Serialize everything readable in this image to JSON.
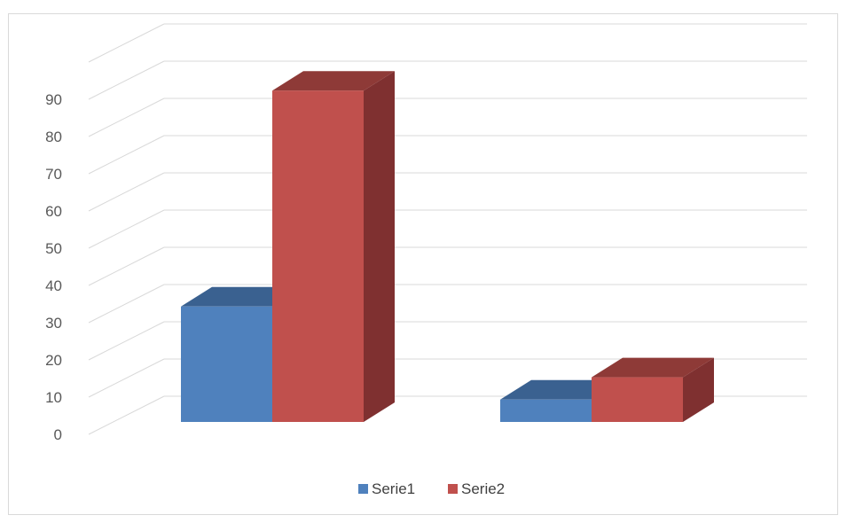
{
  "chart_data": {
    "type": "bar",
    "categories": [
      "",
      ""
    ],
    "series": [
      {
        "name": "Serie1",
        "values": [
          31,
          6
        ],
        "color": "#4F81BD",
        "top_color": "#3A6190",
        "side_color": "#3A6190"
      },
      {
        "name": "Serie2",
        "values": [
          89,
          12
        ],
        "color": "#C0504D",
        "top_color": "#8E3A37",
        "side_color": "#7F3030"
      }
    ],
    "y_ticks": [
      "0",
      "10",
      "20",
      "30",
      "40",
      "50",
      "60",
      "70",
      "80",
      "90"
    ],
    "ylim": [
      0,
      100
    ],
    "grid": true,
    "legend_position": "bottom",
    "three_d": true,
    "title": "",
    "xlabel": "",
    "ylabel": ""
  }
}
